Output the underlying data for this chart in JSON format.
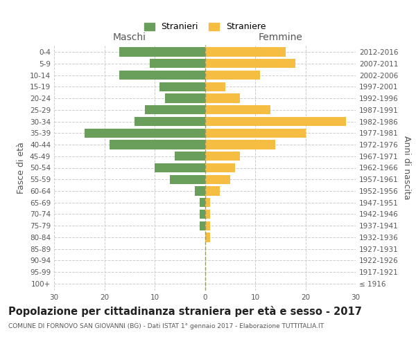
{
  "age_groups": [
    "100+",
    "95-99",
    "90-94",
    "85-89",
    "80-84",
    "75-79",
    "70-74",
    "65-69",
    "60-64",
    "55-59",
    "50-54",
    "45-49",
    "40-44",
    "35-39",
    "30-34",
    "25-29",
    "20-24",
    "15-19",
    "10-14",
    "5-9",
    "0-4"
  ],
  "birth_years": [
    "≤ 1916",
    "1917-1921",
    "1922-1926",
    "1927-1931",
    "1932-1936",
    "1937-1941",
    "1942-1946",
    "1947-1951",
    "1952-1956",
    "1957-1961",
    "1962-1966",
    "1967-1971",
    "1972-1976",
    "1977-1981",
    "1982-1986",
    "1987-1991",
    "1992-1996",
    "1997-2001",
    "2002-2006",
    "2007-2011",
    "2012-2016"
  ],
  "maschi": [
    0,
    0,
    0,
    0,
    0,
    1,
    1,
    1,
    2,
    7,
    10,
    6,
    19,
    24,
    14,
    12,
    8,
    9,
    17,
    11,
    17
  ],
  "femmine": [
    0,
    0,
    0,
    0,
    1,
    1,
    1,
    1,
    3,
    5,
    6,
    7,
    14,
    20,
    28,
    13,
    7,
    4,
    11,
    18,
    16
  ],
  "maschi_color": "#6a9e5b",
  "femmine_color": "#f5be42",
  "background_color": "#ffffff",
  "grid_color": "#cccccc",
  "title": "Popolazione per cittadinanza straniera per età e sesso - 2017",
  "subtitle": "COMUNE DI FORNOVO SAN GIOVANNI (BG) - Dati ISTAT 1° gennaio 2017 - Elaborazione TUTTITALIA.IT",
  "xlabel_left": "Maschi",
  "xlabel_right": "Femmine",
  "ylabel_left": "Fasce di età",
  "ylabel_right": "Anni di nascita",
  "legend_maschi": "Stranieri",
  "legend_femmine": "Straniere",
  "xlim": 30,
  "bar_height": 0.8,
  "title_fontsize": 10.5,
  "subtitle_fontsize": 6.5,
  "axis_label_fontsize": 9,
  "tick_fontsize": 7.5,
  "legend_fontsize": 9
}
